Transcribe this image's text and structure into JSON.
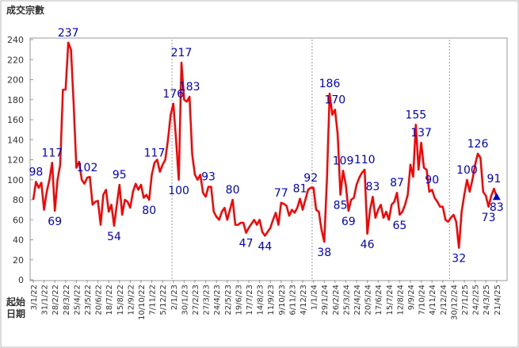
{
  "chart_data": {
    "type": "line",
    "title": "成交宗數",
    "x_label": "起始日期",
    "categories": [
      "3/1/22",
      null,
      null,
      null,
      "31/1/22",
      null,
      null,
      null,
      "28/2/22",
      null,
      null,
      null,
      "28/3/22",
      null,
      null,
      null,
      "25/4/22",
      null,
      null,
      null,
      "23/5/22",
      null,
      null,
      null,
      "20/6/22",
      null,
      null,
      null,
      "18/7/22",
      null,
      null,
      null,
      "15/8/22",
      null,
      null,
      null,
      "12/9/22",
      null,
      null,
      null,
      "10/10/22",
      null,
      null,
      null,
      "7/11/22",
      null,
      null,
      null,
      "5/12/22",
      null,
      null,
      null,
      "2/1/23",
      null,
      null,
      null,
      "30/1/23",
      null,
      null,
      null,
      "27/2/23",
      null,
      null,
      null,
      "27/3/23",
      null,
      null,
      null,
      "24/4/23",
      null,
      null,
      null,
      "22/5/23",
      null,
      null,
      null,
      "19/6/23",
      null,
      null,
      null,
      "17/7/23",
      null,
      null,
      null,
      "14/8/23",
      null,
      null,
      null,
      "11/9/23",
      null,
      null,
      null,
      "9/10/23",
      null,
      null,
      null,
      "6/11/23",
      null,
      null,
      null,
      "4/12/23",
      null,
      null,
      null,
      "1/1/24",
      null,
      null,
      null,
      "29/1/24",
      null,
      null,
      null,
      "26/2/24",
      null,
      null,
      null,
      "25/3/24",
      null,
      null,
      null,
      "22/4/24",
      null,
      null,
      null,
      "20/5/24",
      null,
      null,
      null,
      "17/6/24",
      null,
      null,
      null,
      "15/7/24",
      null,
      null,
      null,
      "12/8/24",
      null,
      null,
      null,
      "9/9/24",
      null,
      null,
      null,
      "7/10/24",
      null,
      null,
      null,
      "4/11/24",
      null,
      null,
      null,
      "2/12/24",
      null,
      null,
      null,
      "30/12/24",
      null,
      null,
      null,
      "27/1/25",
      null,
      null,
      null,
      "24/2/25",
      null,
      null,
      null,
      "24/3/25",
      null,
      null,
      null,
      "21/4/25"
    ],
    "values": [
      80,
      98,
      92,
      97,
      70,
      88,
      100,
      117,
      69,
      100,
      115,
      190,
      190,
      237,
      230,
      175,
      112,
      118,
      100,
      96,
      102,
      103,
      75,
      78,
      79,
      55,
      85,
      90,
      68,
      75,
      54,
      75,
      95,
      65,
      80,
      78,
      72,
      88,
      96,
      90,
      95,
      82,
      85,
      80,
      105,
      117,
      120,
      108,
      115,
      120,
      140,
      165,
      176,
      140,
      100,
      217,
      180,
      178,
      183,
      125,
      105,
      100,
      105,
      87,
      83,
      93,
      93,
      68,
      63,
      60,
      68,
      72,
      60,
      70,
      80,
      55,
      55,
      57,
      57,
      47,
      52,
      56,
      60,
      55,
      60,
      48,
      44,
      48,
      52,
      60,
      67,
      55,
      77,
      76,
      74,
      64,
      70,
      67,
      72,
      81,
      70,
      80,
      90,
      92,
      92,
      70,
      68,
      50,
      38,
      100,
      186,
      165,
      170,
      145,
      85,
      109,
      95,
      69,
      80,
      82,
      95,
      102,
      107,
      110,
      46,
      70,
      83,
      62,
      70,
      75,
      62,
      68,
      60,
      75,
      78,
      87,
      65,
      68,
      75,
      85,
      115,
      103,
      155,
      110,
      137,
      112,
      110,
      88,
      90,
      82,
      78,
      73,
      73,
      60,
      58,
      62,
      65,
      58,
      32,
      68,
      85,
      100,
      88,
      100,
      115,
      126,
      122,
      88,
      84,
      73,
      84,
      91,
      83
    ],
    "value_labels": [
      null,
      "98",
      null,
      null,
      null,
      null,
      null,
      "117",
      "69",
      null,
      null,
      null,
      null,
      "237",
      null,
      null,
      null,
      null,
      null,
      null,
      "102",
      null,
      null,
      null,
      null,
      null,
      null,
      null,
      null,
      null,
      "54",
      null,
      "95",
      null,
      null,
      null,
      null,
      null,
      null,
      null,
      null,
      null,
      null,
      "80",
      null,
      "117",
      null,
      null,
      null,
      null,
      null,
      null,
      "176",
      null,
      "100",
      "217",
      null,
      null,
      "183",
      null,
      null,
      null,
      null,
      null,
      null,
      "93",
      null,
      null,
      null,
      null,
      null,
      null,
      null,
      null,
      "80",
      null,
      null,
      null,
      null,
      "47",
      null,
      null,
      null,
      null,
      null,
      null,
      "44",
      null,
      null,
      null,
      null,
      null,
      "77",
      null,
      null,
      null,
      null,
      null,
      null,
      "81",
      null,
      null,
      null,
      "92",
      null,
      null,
      null,
      null,
      "38",
      null,
      "186",
      null,
      "170",
      null,
      "85",
      "109",
      null,
      "69",
      null,
      null,
      null,
      null,
      null,
      "110",
      "46",
      null,
      "83",
      null,
      null,
      null,
      null,
      null,
      null,
      null,
      null,
      "87",
      "65",
      null,
      null,
      null,
      null,
      null,
      "155",
      null,
      "137",
      null,
      null,
      null,
      "90",
      null,
      null,
      null,
      null,
      null,
      null,
      null,
      null,
      null,
      "32",
      null,
      null,
      "100",
      null,
      null,
      null,
      "126",
      null,
      null,
      null,
      "73",
      null,
      "91",
      "83"
    ],
    "color": "#ff0000",
    "label_color": "#0000cc",
    "ylim": [
      0,
      240
    ],
    "yticks": [
      0,
      20,
      40,
      60,
      80,
      100,
      120,
      140,
      160,
      180,
      200,
      220,
      240
    ]
  }
}
